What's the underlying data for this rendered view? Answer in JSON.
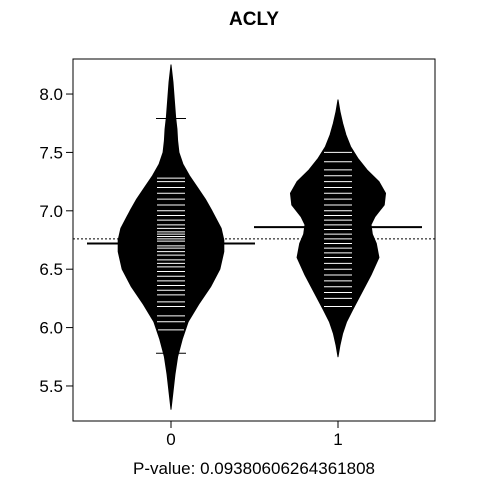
{
  "chart_data": {
    "type": "beanplot",
    "title": "ACLY",
    "xlabel": "P-value: 0.0938060626436180​8",
    "ylabel": "",
    "categories": [
      "0",
      "1"
    ],
    "ylim": [
      5.2,
      8.3
    ],
    "y_ticks": [
      "5.5",
      "6.0",
      "6.5",
      "7.0",
      "7.5",
      "8.0"
    ],
    "overall_mean": 6.76,
    "grid": false,
    "series": [
      {
        "category": "0",
        "mean": 6.72,
        "density": [
          [
            5.3,
            0.0
          ],
          [
            5.45,
            0.03
          ],
          [
            5.6,
            0.06
          ],
          [
            5.75,
            0.1
          ],
          [
            5.9,
            0.17
          ],
          [
            6.05,
            0.26
          ],
          [
            6.2,
            0.42
          ],
          [
            6.35,
            0.6
          ],
          [
            6.5,
            0.74
          ],
          [
            6.65,
            0.8
          ],
          [
            6.75,
            0.8
          ],
          [
            6.85,
            0.76
          ],
          [
            7.0,
            0.62
          ],
          [
            7.1,
            0.52
          ],
          [
            7.2,
            0.4
          ],
          [
            7.3,
            0.28
          ],
          [
            7.4,
            0.18
          ],
          [
            7.5,
            0.12
          ],
          [
            7.6,
            0.1
          ],
          [
            7.7,
            0.09
          ],
          [
            7.8,
            0.07
          ],
          [
            7.95,
            0.05
          ],
          [
            8.1,
            0.03
          ],
          [
            8.25,
            0.0
          ]
        ],
        "observations": [
          5.78,
          5.98,
          6.05,
          6.1,
          6.18,
          6.22,
          6.28,
          6.32,
          6.36,
          6.4,
          6.44,
          6.48,
          6.52,
          6.55,
          6.58,
          6.62,
          6.65,
          6.68,
          6.7,
          6.72,
          6.74,
          6.76,
          6.78,
          6.8,
          6.82,
          6.85,
          6.88,
          6.92,
          6.96,
          7.0,
          7.05,
          7.1,
          7.15,
          7.2,
          7.25,
          7.28,
          7.79
        ]
      },
      {
        "category": "1",
        "mean": 6.86,
        "density": [
          [
            5.75,
            0.0
          ],
          [
            5.85,
            0.03
          ],
          [
            5.95,
            0.07
          ],
          [
            6.05,
            0.13
          ],
          [
            6.15,
            0.22
          ],
          [
            6.3,
            0.36
          ],
          [
            6.45,
            0.5
          ],
          [
            6.6,
            0.62
          ],
          [
            6.72,
            0.58
          ],
          [
            6.8,
            0.52
          ],
          [
            6.88,
            0.5
          ],
          [
            6.95,
            0.56
          ],
          [
            7.05,
            0.7
          ],
          [
            7.15,
            0.72
          ],
          [
            7.25,
            0.62
          ],
          [
            7.35,
            0.44
          ],
          [
            7.45,
            0.3
          ],
          [
            7.55,
            0.19
          ],
          [
            7.65,
            0.12
          ],
          [
            7.75,
            0.07
          ],
          [
            7.85,
            0.03
          ],
          [
            7.95,
            0.0
          ]
        ],
        "observations": [
          6.18,
          6.25,
          6.3,
          6.35,
          6.4,
          6.45,
          6.5,
          6.55,
          6.6,
          6.64,
          6.68,
          6.72,
          6.76,
          6.8,
          6.84,
          6.88,
          6.92,
          6.96,
          7.0,
          7.05,
          7.1,
          7.15,
          7.2,
          7.25,
          7.3,
          7.35,
          7.42,
          7.5
        ]
      }
    ]
  }
}
